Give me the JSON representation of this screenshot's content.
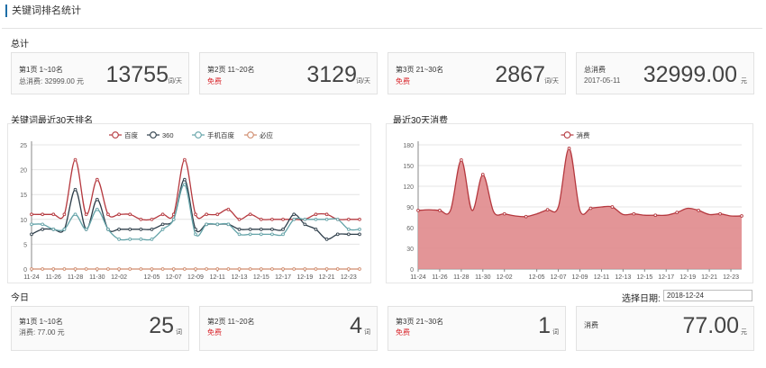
{
  "page_title": "关键词排名统计",
  "summary": {
    "heading": "总计",
    "cards": [
      {
        "label": "第1页 1~10名",
        "sub": "总消费: 32999.00 元",
        "sub_red": false,
        "value": "13755",
        "unit": "词/天"
      },
      {
        "label": "第2页 11~20名",
        "sub": "免费",
        "sub_red": true,
        "value": "3129",
        "unit": "词/天"
      },
      {
        "label": "第3页 21~30名",
        "sub": "免费",
        "sub_red": true,
        "value": "2867",
        "unit": "词/天"
      },
      {
        "label": "总消费",
        "sub": "2017-05-11",
        "sub_red": false,
        "value": "32999.00",
        "unit": "元"
      }
    ]
  },
  "ranking_chart": {
    "heading": "关键词最近30天排名",
    "legend": [
      "百度",
      "360",
      "手机百度",
      "必应"
    ],
    "colors": [
      "#b5393f",
      "#2e3e4a",
      "#64a3a8",
      "#d08c6e"
    ]
  },
  "spend_chart": {
    "heading": "最近30天消费",
    "legend": [
      "消费"
    ],
    "colors": [
      "#b5393f",
      "#e08a8c"
    ]
  },
  "today": {
    "heading": "今日",
    "date_label": "选择日期:",
    "date_value": "2018-12-24",
    "cards": [
      {
        "label": "第1页 1~10名",
        "sub": "消费: 77.00 元",
        "sub_red": false,
        "value": "25",
        "unit": "词"
      },
      {
        "label": "第2页 11~20名",
        "sub": "免费",
        "sub_red": true,
        "value": "4",
        "unit": "词"
      },
      {
        "label": "第3页 21~30名",
        "sub": "免费",
        "sub_red": true,
        "value": "1",
        "unit": "词"
      },
      {
        "label": "消费",
        "sub": "",
        "sub_red": false,
        "value": "77.00",
        "unit": "元"
      }
    ]
  },
  "chart_data": [
    {
      "type": "line",
      "title": "关键词最近30天排名",
      "x": [
        "11-24",
        "11-25",
        "11-26",
        "11-27",
        "11-28",
        "11-29",
        "11-30",
        "12-01",
        "12-02",
        "12-03",
        "12-04",
        "12-05",
        "12-06",
        "12-07",
        "12-08",
        "12-09",
        "12-10",
        "12-11",
        "12-12",
        "12-13",
        "12-14",
        "12-15",
        "12-16",
        "12-17",
        "12-18",
        "12-19",
        "12-20",
        "12-21",
        "12-22",
        "12-23",
        "12-24"
      ],
      "xticks": [
        "11-24",
        "11-26",
        "11-28",
        "11-30",
        "12-02",
        "12-05",
        "12-07",
        "12-09",
        "12-11",
        "12-13",
        "12-15",
        "12-17",
        "12-19",
        "12-21",
        "12-23"
      ],
      "ylim": [
        0,
        25
      ],
      "yticks": [
        0,
        5,
        10,
        15,
        20,
        25
      ],
      "legend_position": "top-center",
      "grid": true,
      "series": [
        {
          "name": "百度",
          "values": [
            11,
            11,
            11,
            11,
            22,
            11,
            18,
            11,
            11,
            11,
            10,
            10,
            11,
            11,
            22,
            11,
            11,
            11,
            12,
            10,
            11,
            10,
            10,
            10,
            10,
            10,
            11,
            11,
            10,
            10,
            10
          ]
        },
        {
          "name": "360",
          "values": [
            7,
            8,
            8,
            8,
            16,
            8,
            14,
            8,
            8,
            8,
            8,
            8,
            9,
            10,
            18,
            8,
            9,
            9,
            9,
            8,
            8,
            8,
            8,
            8,
            11,
            9,
            8,
            6,
            7,
            7,
            7
          ]
        },
        {
          "name": "手机百度",
          "values": [
            9,
            9,
            8,
            8,
            11,
            8,
            12,
            8,
            6,
            6,
            6,
            6,
            8,
            10,
            17,
            7,
            9,
            9,
            9,
            7,
            7,
            7,
            7,
            7,
            10,
            10,
            10,
            10,
            10,
            8,
            8
          ]
        },
        {
          "name": "必应",
          "values": [
            0,
            0,
            0,
            0,
            0,
            0,
            0,
            0,
            0,
            0,
            0,
            0,
            0,
            0,
            0,
            0,
            0,
            0,
            0,
            0,
            0,
            0,
            0,
            0,
            0,
            0,
            0,
            0,
            0,
            0,
            0
          ]
        }
      ]
    },
    {
      "type": "area",
      "title": "最近30天消费",
      "x": [
        "11-24",
        "11-25",
        "11-26",
        "11-27",
        "11-28",
        "11-29",
        "11-30",
        "12-01",
        "12-02",
        "12-03",
        "12-04",
        "12-05",
        "12-06",
        "12-07",
        "12-08",
        "12-09",
        "12-10",
        "12-11",
        "12-12",
        "12-13",
        "12-14",
        "12-15",
        "12-16",
        "12-17",
        "12-18",
        "12-19",
        "12-20",
        "12-21",
        "12-22",
        "12-23",
        "12-24"
      ],
      "xticks": [
        "11-24",
        "11-26",
        "11-28",
        "11-30",
        "12-02",
        "12-05",
        "12-07",
        "12-09",
        "12-11",
        "12-13",
        "12-15",
        "12-17",
        "12-19",
        "12-21",
        "12-23"
      ],
      "ylim": [
        0,
        180
      ],
      "yticks": [
        0,
        30,
        60,
        90,
        120,
        150,
        180
      ],
      "legend_position": "top-center",
      "grid": true,
      "series": [
        {
          "name": "消费",
          "values": [
            85,
            86,
            85,
            85,
            158,
            85,
            137,
            83,
            80,
            77,
            76,
            80,
            86,
            90,
            175,
            85,
            88,
            90,
            90,
            79,
            80,
            78,
            78,
            78,
            82,
            88,
            85,
            79,
            80,
            77,
            77
          ]
        }
      ]
    }
  ]
}
